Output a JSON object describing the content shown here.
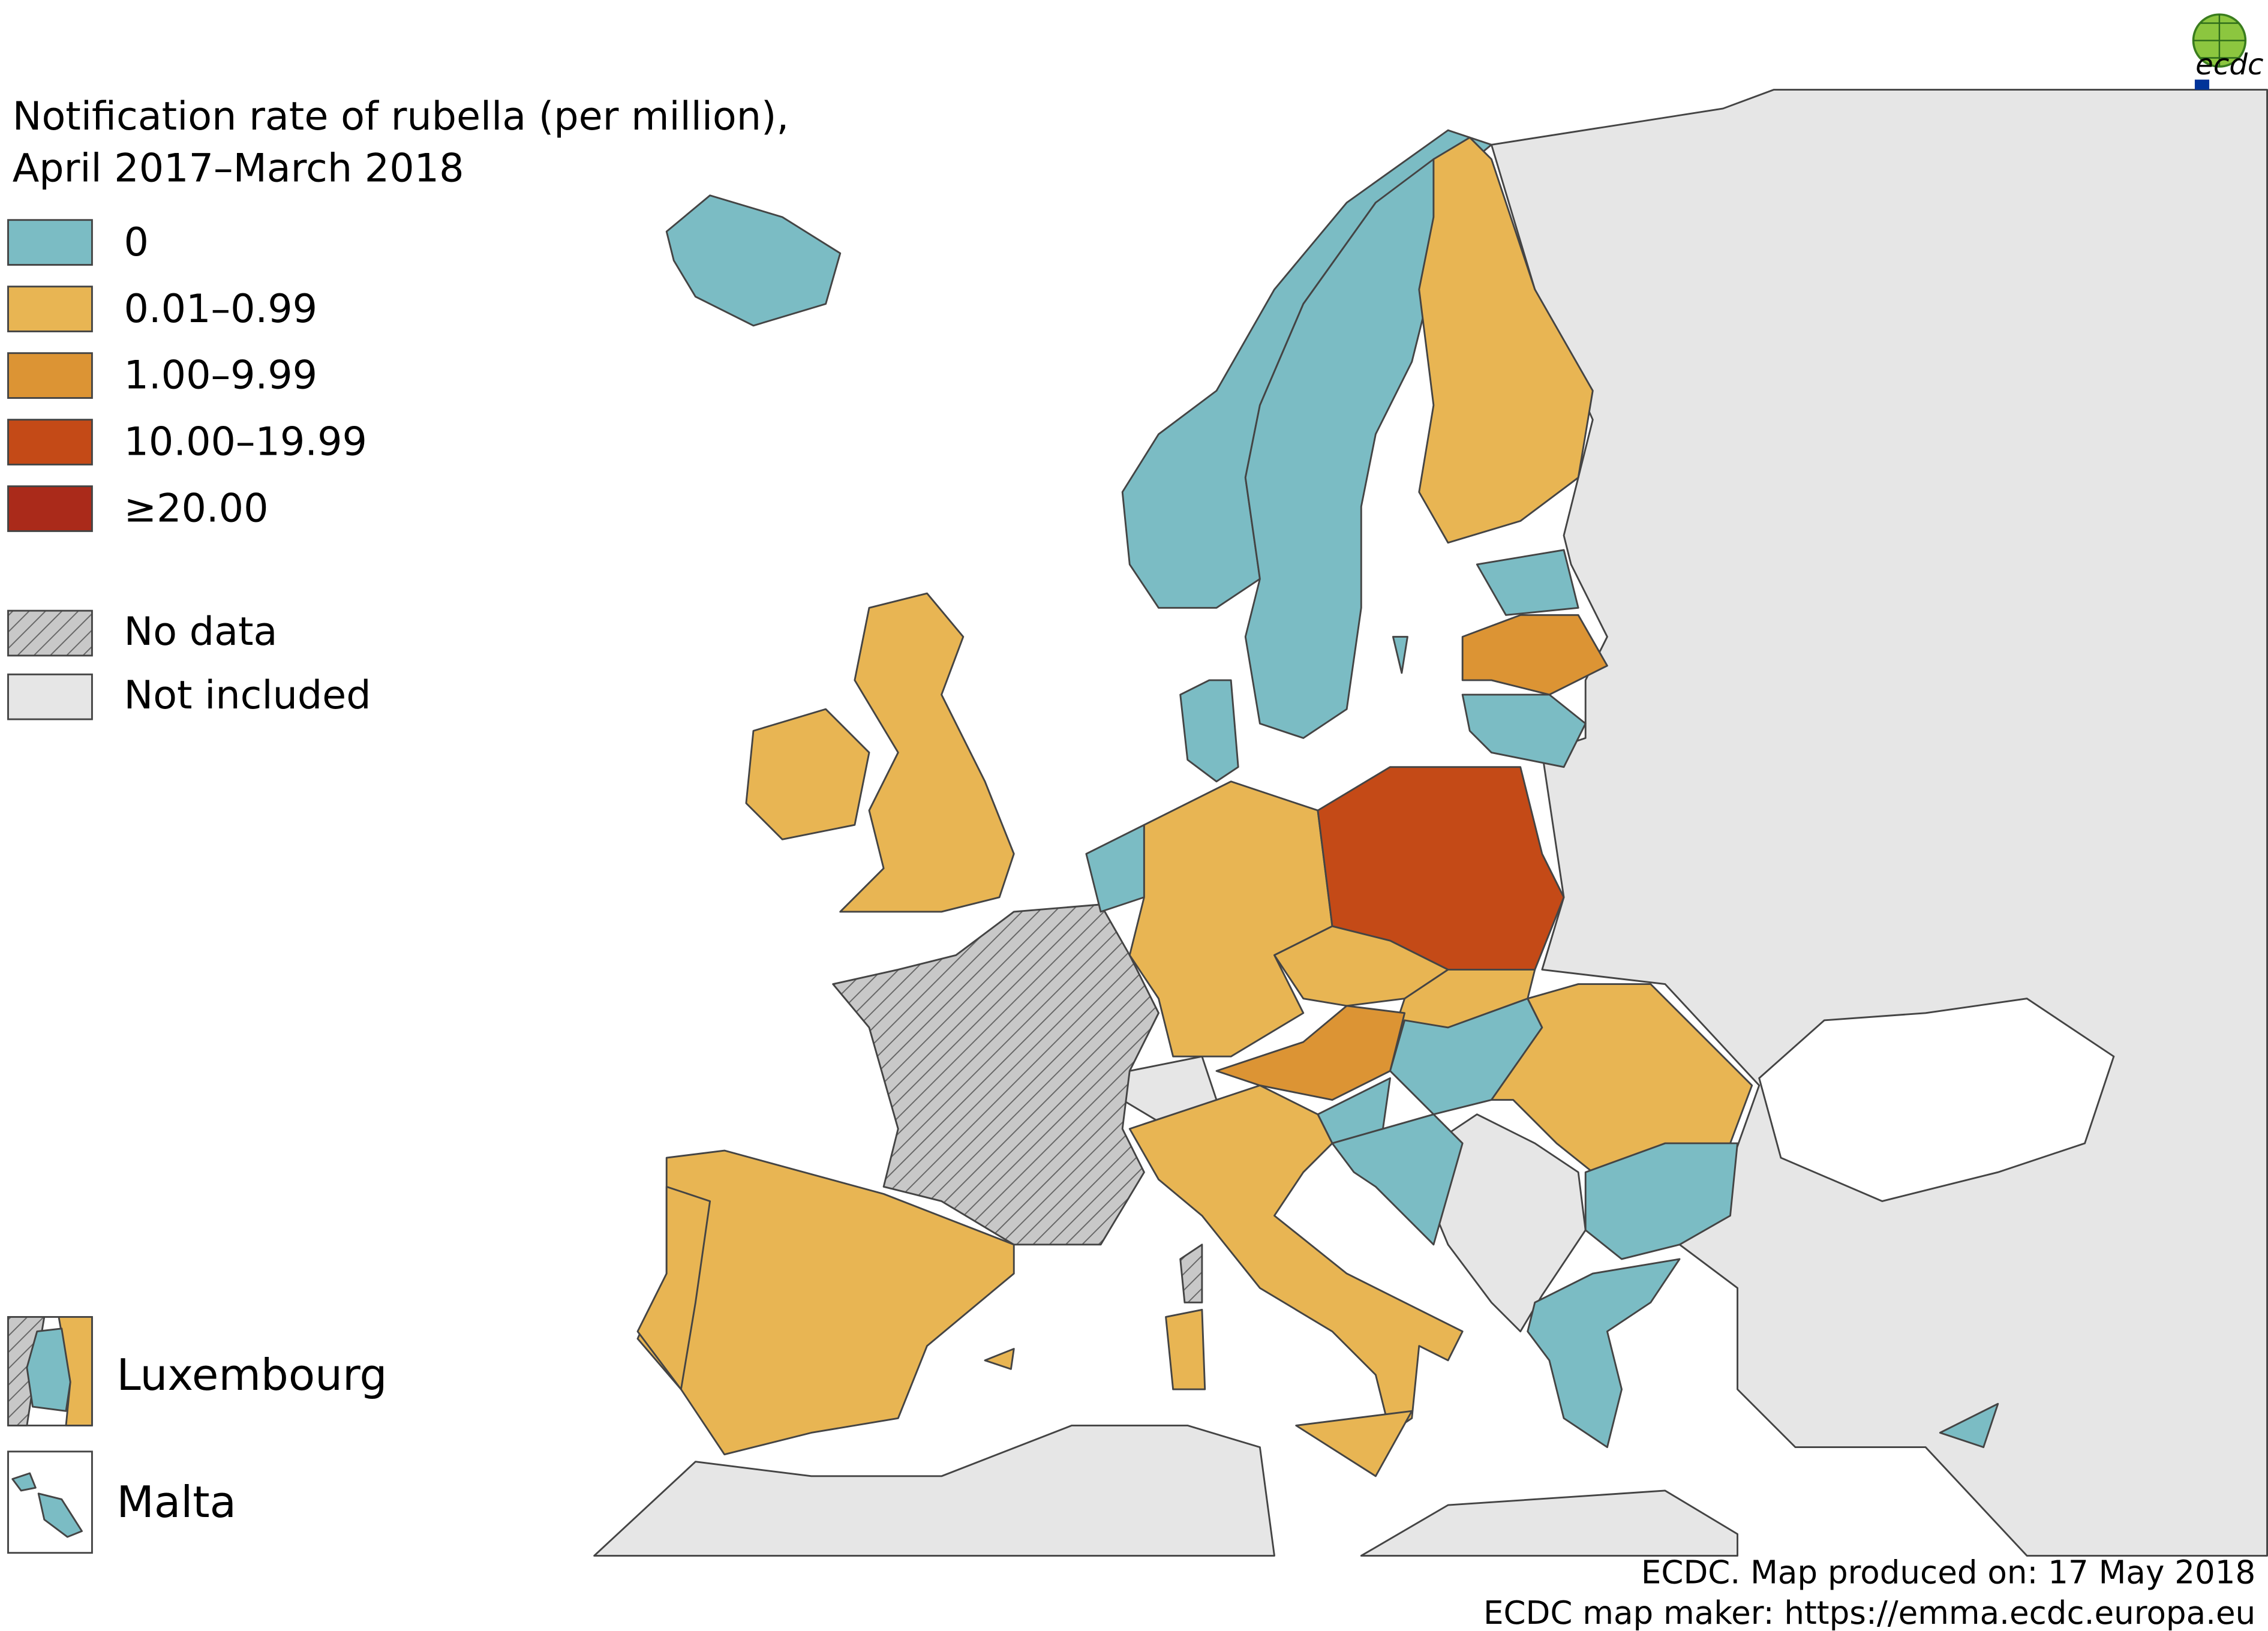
{
  "title": [
    "Notification rate of rubella (per million),",
    "April 2017–March 2018"
  ],
  "legend": [
    {
      "label": "0",
      "color": "#7bbcc4"
    },
    {
      "label": "0.01–0.99",
      "color": "#e8b553"
    },
    {
      "label": "1.00–9.99",
      "color": "#dc9434"
    },
    {
      "label": "10.00–19.99",
      "color": "#c44a17"
    },
    {
      "label": "≥20.00",
      "color": "#aa2a1a"
    }
  ],
  "legend_other": [
    {
      "label": "No data"
    },
    {
      "label": "Not included",
      "color": "#e6e6e6"
    }
  ],
  "insets": [
    "Luxembourg",
    "Malta"
  ],
  "footer": [
    "ECDC. Map produced on: 17 May 2018",
    "ECDC map maker: https://emma.ecdc.europa.eu"
  ],
  "logo": "ecdc"
}
